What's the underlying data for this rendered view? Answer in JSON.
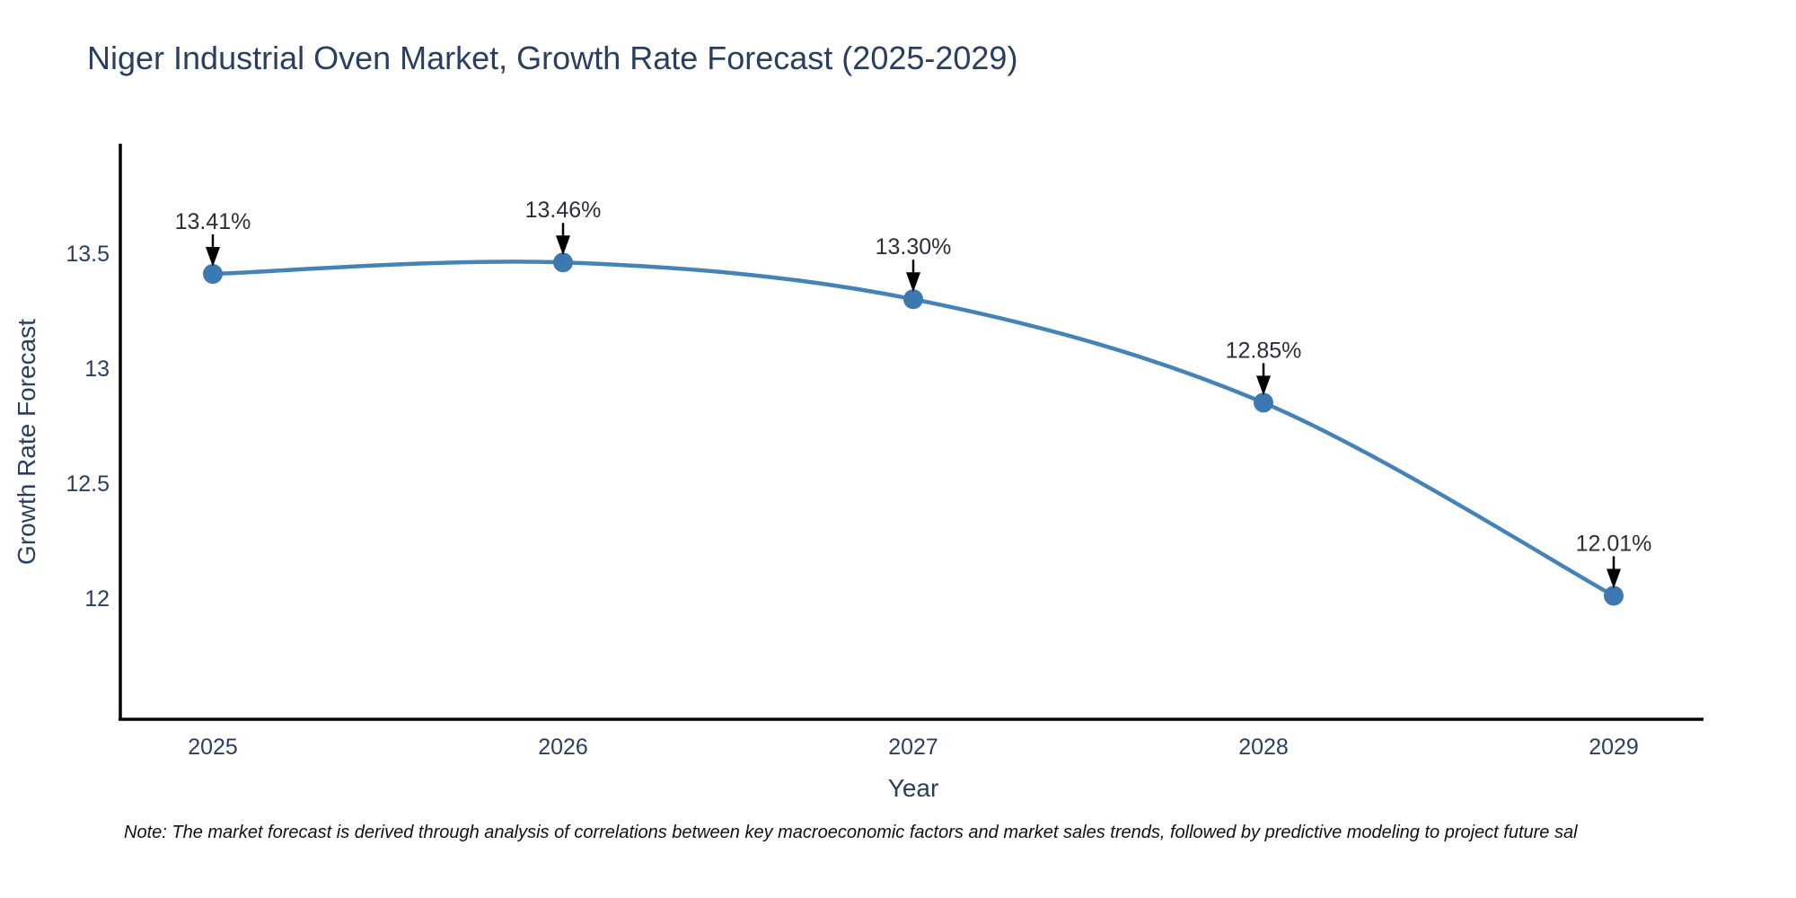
{
  "title": "Niger Industrial Oven Market, Growth Rate Forecast (2025-2029)",
  "footnote": "Note: The market forecast is derived through analysis of correlations between key macroeconomic factors and market sales trends, followed by predictive modeling to project future sal",
  "chart_data": {
    "type": "line",
    "title": "Niger Industrial Oven Market, Growth Rate Forecast (2025-2029)",
    "xlabel": "Year",
    "ylabel": "Growth Rate Forecast",
    "x": [
      2025,
      2026,
      2027,
      2028,
      2029
    ],
    "series": [
      {
        "name": "Growth Rate Forecast",
        "values": [
          13.41,
          13.46,
          13.3,
          12.85,
          12.01
        ]
      }
    ],
    "point_labels": [
      "13.41%",
      "13.46%",
      "13.30%",
      "12.85%",
      "12.01%"
    ],
    "xtick_labels": [
      "2025",
      "2026",
      "2027",
      "2028",
      "2029"
    ],
    "ytick_values": [
      13.5,
      13,
      12.5,
      12
    ],
    "ytick_labels": [
      "13.5",
      "13",
      "12.5",
      "12"
    ],
    "ylim": [
      11.5,
      14.0
    ],
    "grid": false,
    "legend_position": "none",
    "line_color": "#4583b7",
    "marker_color": "#3d79b0",
    "axis_color": "#000000",
    "tick_color": "#2a3f5f",
    "annotation_color": "#2b2f36",
    "arrow_color": "#000000"
  }
}
